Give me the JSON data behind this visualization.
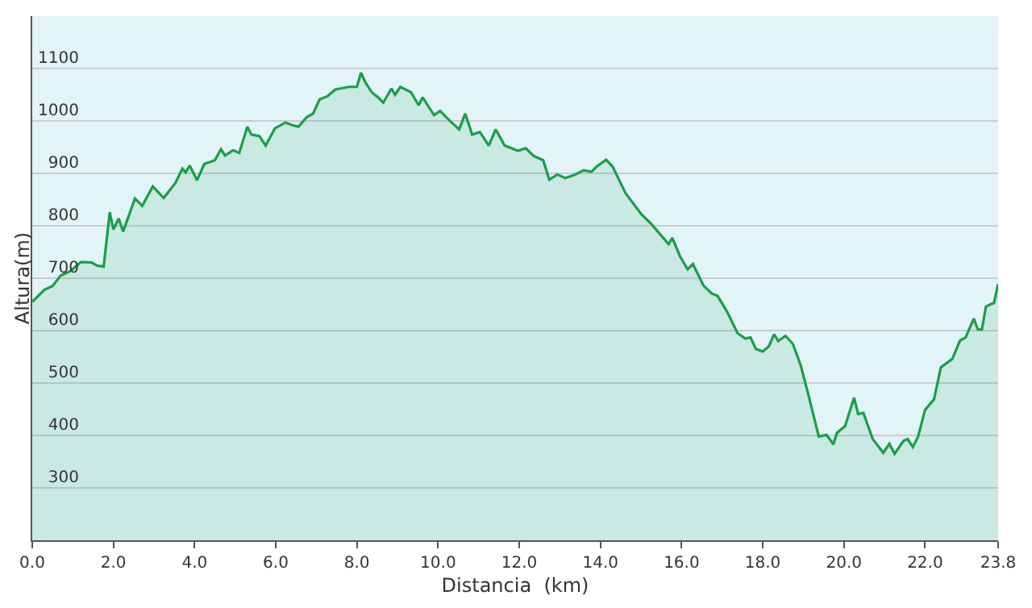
{
  "chart_data": {
    "type": "area",
    "xlabel": "Distancia  (km)",
    "ylabel": "Altura(m)",
    "x": [
      0,
      0.3,
      0.5,
      0.7,
      0.95,
      1.2,
      1.46,
      1.6,
      1.76,
      1.91,
      2.0,
      2.13,
      2.24,
      2.53,
      2.71,
      2.97,
      3.24,
      3.53,
      3.7,
      3.78,
      3.88,
      4.06,
      4.24,
      4.5,
      4.65,
      4.75,
      4.95,
      5.1,
      5.3,
      5.4,
      5.6,
      5.75,
      5.98,
      6.24,
      6.41,
      6.56,
      6.76,
      6.92,
      7.08,
      7.27,
      7.47,
      7.8,
      8.0,
      8.1,
      8.2,
      8.36,
      8.52,
      8.65,
      8.85,
      8.94,
      9.07,
      9.33,
      9.52,
      9.62,
      9.9,
      10.05,
      10.28,
      10.52,
      10.67,
      10.84,
      11.03,
      11.25,
      11.42,
      11.64,
      11.97,
      12.16,
      12.36,
      12.59,
      12.74,
      12.94,
      13.13,
      13.33,
      13.59,
      13.78,
      13.91,
      14.14,
      14.3,
      14.62,
      15.01,
      15.27,
      15.68,
      15.77,
      15.96,
      16.15,
      16.28,
      16.54,
      16.74,
      16.89,
      17.12,
      17.38,
      17.57,
      17.7,
      17.83,
      18.0,
      18.15,
      18.28,
      18.38,
      18.56,
      18.74,
      18.93,
      19.12,
      19.38,
      19.57,
      19.74,
      19.83,
      20.03,
      20.25,
      20.35,
      20.48,
      20.71,
      20.97,
      21.12,
      21.25,
      21.47,
      21.57,
      21.7,
      21.83,
      22.0,
      22.22,
      22.39,
      22.67,
      22.86,
      23.0,
      23.2,
      23.3,
      23.4,
      23.5,
      23.7,
      23.8
    ],
    "series": [
      {
        "color": "#1a9e4a",
        "values": [
          655,
          678,
          685,
          705,
          714,
          731,
          730,
          724,
          722,
          826,
          793,
          814,
          789,
          852,
          838,
          875,
          853,
          882,
          909,
          902,
          915,
          887,
          918,
          925,
          946,
          934,
          944,
          939,
          989,
          974,
          971,
          953,
          986,
          997,
          992,
          989,
          1007,
          1014,
          1041,
          1047,
          1060,
          1065,
          1065,
          1092,
          1075,
          1055,
          1045,
          1035,
          1062,
          1050,
          1065,
          1055,
          1030,
          1045,
          1011,
          1019,
          1001,
          984,
          1014,
          974,
          979,
          953,
          984,
          953,
          943,
          948,
          933,
          925,
          888,
          898,
          891,
          896,
          906,
          903,
          913,
          926,
          913,
          862,
          822,
          802,
          765,
          777,
          742,
          717,
          727,
          686,
          671,
          666,
          636,
          595,
          585,
          587,
          565,
          560,
          570,
          593,
          580,
          590,
          575,
          535,
          479,
          398,
          401,
          383,
          405,
          418,
          472,
          441,
          443,
          393,
          367,
          384,
          365,
          390,
          393,
          378,
          398,
          449,
          469,
          530,
          546,
          581,
          587,
          623,
          602,
          602,
          646,
          653,
          689
        ]
      }
    ],
    "xlim": [
      0,
      23.8
    ],
    "ylim": [
      200,
      1200
    ],
    "xticks": [
      {
        "value": 0,
        "label": "0.0"
      },
      {
        "value": 2,
        "label": "2.0"
      },
      {
        "value": 4,
        "label": "4.0"
      },
      {
        "value": 6,
        "label": "6.0"
      },
      {
        "value": 8,
        "label": "8.0"
      },
      {
        "value": 10,
        "label": "10.0"
      },
      {
        "value": 12,
        "label": "12.0"
      },
      {
        "value": 14,
        "label": "14.0"
      },
      {
        "value": 16,
        "label": "16.0"
      },
      {
        "value": 18,
        "label": "18.0"
      },
      {
        "value": 20,
        "label": "20.0"
      },
      {
        "value": 22,
        "label": "22.0"
      },
      {
        "value": 23.8,
        "label": "23.8"
      }
    ],
    "yticks": [
      300,
      400,
      500,
      600,
      700,
      800,
      900,
      1000,
      1100
    ],
    "grid": "y"
  }
}
